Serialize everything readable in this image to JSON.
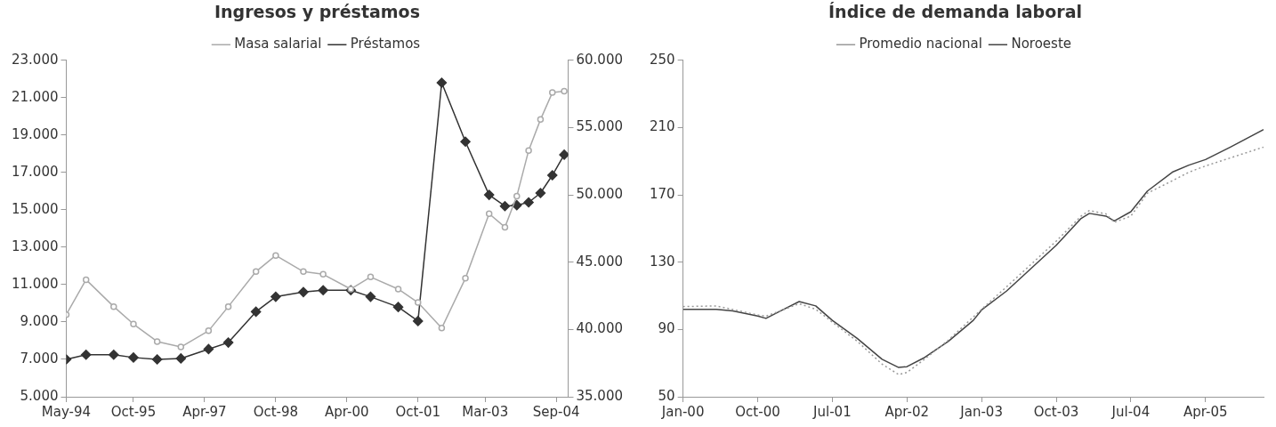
{
  "chart_data": [
    {
      "type": "line",
      "title": "Ingresos y préstamos",
      "x": [
        "1994-05",
        "1994-10",
        "1995-05",
        "1995-10",
        "1996-04",
        "1996-10",
        "1997-05",
        "1997-10",
        "1998-05",
        "1998-10",
        "1999-05",
        "1999-10",
        "2000-05",
        "2000-10",
        "2001-05",
        "2001-10",
        "2002-04",
        "2002-10",
        "2003-04",
        "2003-08",
        "2003-11",
        "2004-02",
        "2004-05",
        "2004-08",
        "2004-11"
      ],
      "series": [
        {
          "name": "Préstamos",
          "color": "#333333",
          "marker": "diamond",
          "values": [
            7000,
            7250,
            7250,
            7100,
            7000,
            7050,
            7550,
            7900,
            9550,
            10350,
            10600,
            10700,
            10700,
            10350,
            9800,
            9050,
            21800,
            18650,
            15800,
            15200,
            15250,
            15400,
            15900,
            16850,
            17950
          ]
        },
        {
          "name": "Masa salarial",
          "color": "#aaaaaa",
          "marker": "circle",
          "axis": "y2",
          "values": [
            41100,
            43700,
            41700,
            40400,
            39100,
            38700,
            39900,
            41700,
            44300,
            45500,
            44300,
            44100,
            43000,
            43900,
            43000,
            42000,
            40100,
            43800,
            48600,
            47600,
            49900,
            53300,
            55600,
            57600,
            57700
          ]
        }
      ],
      "xlim": [
        "1994-05",
        "2004-12"
      ],
      "xticks": [
        {
          "value": "1994-05",
          "label": "May-94"
        },
        {
          "value": "1995-10",
          "label": "Oct-95"
        },
        {
          "value": "1997-04",
          "label": "Apr-97"
        },
        {
          "value": "1998-10",
          "label": "Oct-98"
        },
        {
          "value": "2000-04",
          "label": "Apr-00"
        },
        {
          "value": "2001-10",
          "label": "Oct-01"
        },
        {
          "value": "2003-03",
          "label": "Mar-03"
        },
        {
          "value": "2004-09",
          "label": "Sep-04"
        }
      ],
      "ylim": [
        5000,
        23000
      ],
      "yticks": [
        {
          "value": 5000,
          "label": "5.000"
        },
        {
          "value": 7000,
          "label": "7.000"
        },
        {
          "value": 9000,
          "label": "9.000"
        },
        {
          "value": 11000,
          "label": "11.000"
        },
        {
          "value": 13000,
          "label": "13.000"
        },
        {
          "value": 15000,
          "label": "15.000"
        },
        {
          "value": 17000,
          "label": "17.000"
        },
        {
          "value": 19000,
          "label": "19.000"
        },
        {
          "value": 21000,
          "label": "21.000"
        },
        {
          "value": 23000,
          "label": "23.000"
        }
      ],
      "y2lim": [
        35000,
        60000
      ],
      "y2ticks": [
        {
          "value": 35000,
          "label": "35.000"
        },
        {
          "value": 40000,
          "label": "40.000"
        },
        {
          "value": 45000,
          "label": "45.000"
        },
        {
          "value": 50000,
          "label": "50.000"
        },
        {
          "value": 55000,
          "label": "55.000"
        },
        {
          "value": 60000,
          "label": "60.000"
        }
      ],
      "grid": false,
      "legend": "top"
    },
    {
      "type": "line",
      "title": "Índice de demanda laboral",
      "marker": "none",
      "series": [
        {
          "name": "Noroeste",
          "color": "#444444",
          "line_style": "solid",
          "x": [
            "2000-01",
            "2000-05",
            "2000-07",
            "2000-10",
            "2000-11",
            "2001-01",
            "2001-03",
            "2001-05",
            "2001-07",
            "2001-10",
            "2002-01",
            "2002-03",
            "2002-04",
            "2002-06",
            "2002-09",
            "2002-12",
            "2003-01",
            "2003-04",
            "2003-07",
            "2003-10",
            "2004-01",
            "2004-02",
            "2004-04",
            "2004-05",
            "2004-07",
            "2004-09",
            "2004-12",
            "2005-02",
            "2005-04",
            "2005-07",
            "2005-11"
          ],
          "values": [
            102,
            102,
            101,
            98,
            96.6,
            101.6,
            106.6,
            104,
            95.4,
            84.7,
            72.3,
            67.4,
            67.9,
            73,
            83,
            95.4,
            101.6,
            112.8,
            126.4,
            140,
            156,
            159,
            157.4,
            154.5,
            160,
            172.3,
            183.5,
            187.7,
            191,
            198.4,
            208.8
          ]
        },
        {
          "name": "Promedio nacional",
          "color": "#999999",
          "line_style": "dotted",
          "x": [
            "2000-01",
            "2000-05",
            "2000-10",
            "2000-11",
            "2001-03",
            "2001-05",
            "2001-10",
            "2002-01",
            "2002-03",
            "2002-04",
            "2002-06",
            "2002-09",
            "2003-01",
            "2003-04",
            "2003-07",
            "2003-10",
            "2004-01",
            "2004-02",
            "2004-04",
            "2004-05",
            "2004-07",
            "2004-09",
            "2004-12",
            "2005-02",
            "2005-04",
            "2005-07",
            "2005-11"
          ],
          "values": [
            103.6,
            104,
            98.6,
            97.9,
            105.3,
            102,
            83,
            69.4,
            63.2,
            64.4,
            71.8,
            83.7,
            102,
            115.3,
            128.9,
            142.5,
            157.4,
            160.7,
            158.7,
            153.7,
            157.4,
            171,
            178.4,
            183.5,
            187.2,
            192,
            198.4
          ]
        }
      ],
      "xlim": [
        "2000-01",
        "2005-11"
      ],
      "xticks": [
        {
          "value": "2000-01",
          "label": "Jan-00"
        },
        {
          "value": "2000-10",
          "label": "Oct-00"
        },
        {
          "value": "2001-07",
          "label": "Jul-01"
        },
        {
          "value": "2002-04",
          "label": "Apr-02"
        },
        {
          "value": "2003-01",
          "label": "Jan-03"
        },
        {
          "value": "2003-10",
          "label": "Oct-03"
        },
        {
          "value": "2004-07",
          "label": "Jul-04"
        },
        {
          "value": "2005-04",
          "label": "Apr-05"
        }
      ],
      "ylim": [
        50,
        250
      ],
      "yticks": [
        50,
        90,
        130,
        170,
        210,
        250
      ],
      "grid": false,
      "legend": "top"
    }
  ]
}
